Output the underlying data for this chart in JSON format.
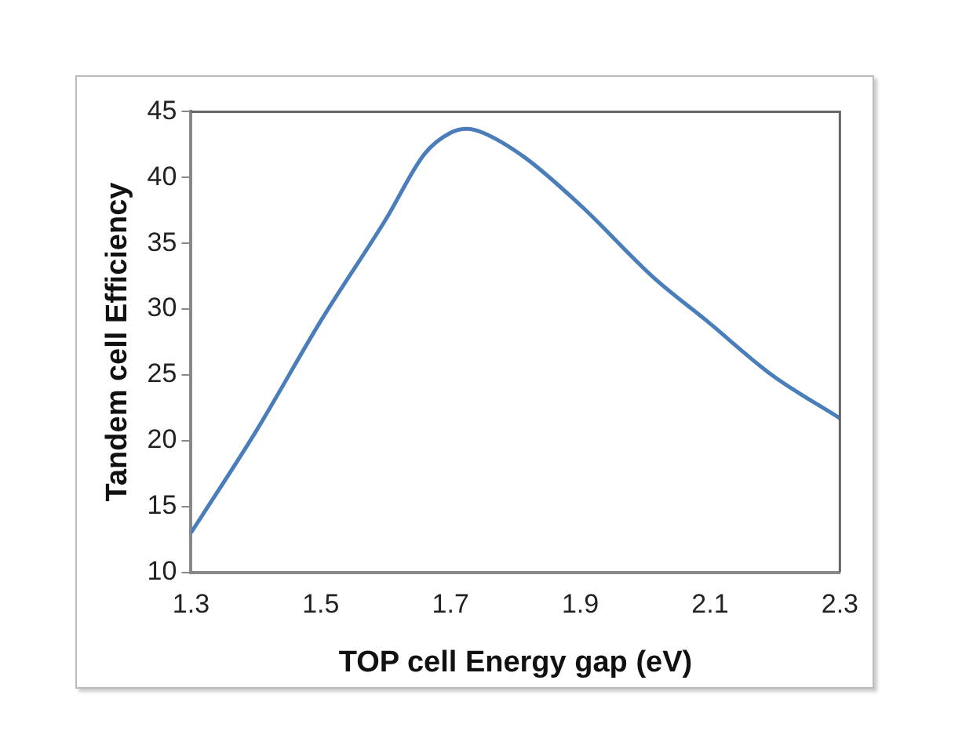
{
  "chart_data": {
    "type": "line",
    "xlabel": "TOP cell Energy gap (eV)",
    "ylabel": "Tandem cell Efficiency",
    "x": [
      1.3,
      1.4,
      1.5,
      1.6,
      1.66,
      1.7,
      1.725,
      1.75,
      1.815,
      1.9,
      2.015,
      2.095,
      2.195,
      2.3
    ],
    "series": [
      {
        "color": "#4a7ebb",
        "values": [
          13.0,
          20.7,
          29.1,
          36.8,
          41.8,
          43.4,
          43.7,
          43.4,
          41.5,
          37.9,
          32.3,
          29.1,
          25.0,
          21.7
        ]
      }
    ],
    "xlim": [
      1.3,
      2.3
    ],
    "xticks": [
      1.3,
      1.5,
      1.7,
      1.9,
      2.1,
      2.3
    ],
    "ylim": [
      10,
      45
    ],
    "yticks": [
      10,
      15,
      20,
      25,
      30,
      35,
      40,
      45
    ],
    "grid": false,
    "legend": false,
    "marker": "none",
    "line_style": "solid"
  }
}
